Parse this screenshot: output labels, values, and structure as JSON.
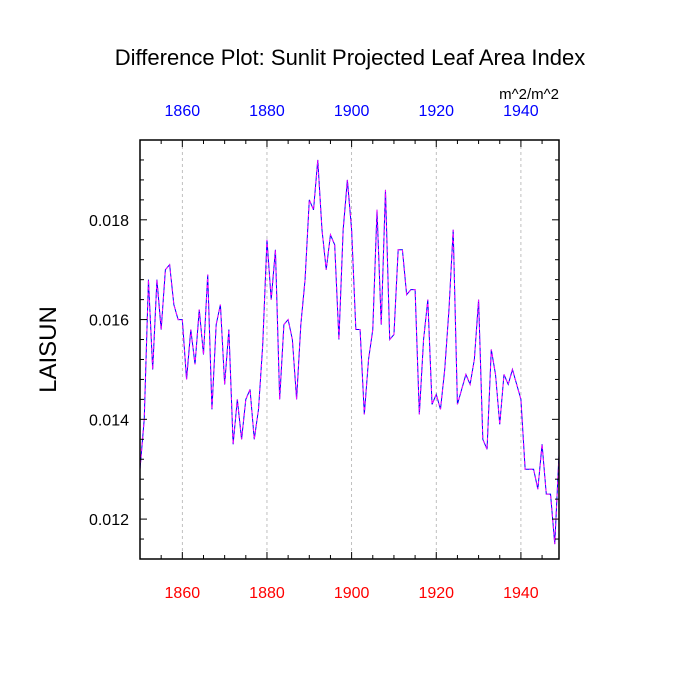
{
  "chart_data": {
    "type": "line",
    "title": "Difference Plot: Sunlit Projected Leaf Area Index",
    "units": "m^2/m^2",
    "ylabel": "LAISUN",
    "xlabel": "",
    "xlim": [
      1850,
      1949
    ],
    "ylim": [
      0.0112,
      0.0196
    ],
    "xticks": [
      1860,
      1880,
      1900,
      1920,
      1940
    ],
    "xtick_labels_bottom": [
      "1860",
      "1880",
      "1900",
      "1920",
      "1940"
    ],
    "xtick_labels_top": [
      "1860",
      "1880",
      "1900",
      "1920",
      "1940"
    ],
    "yticks": [
      0.012,
      0.014,
      0.016,
      0.018
    ],
    "ytick_labels": [
      "0.012",
      "0.014",
      "0.016",
      "0.018"
    ],
    "grid": "vertical dashed at major x ticks",
    "colors": {
      "bottom_tick_labels": "#ff0000",
      "top_tick_labels": "#0000ff",
      "line_primary": "#0000ff",
      "line_overlay": "#ff00ff",
      "grid": "#b0b0b0",
      "frame": "#000000"
    },
    "series": [
      {
        "name": "LAISUN difference",
        "x": [
          1850,
          1851,
          1852,
          1853,
          1854,
          1855,
          1856,
          1857,
          1858,
          1859,
          1860,
          1861,
          1862,
          1863,
          1864,
          1865,
          1866,
          1867,
          1868,
          1869,
          1870,
          1871,
          1872,
          1873,
          1874,
          1875,
          1876,
          1877,
          1878,
          1879,
          1880,
          1881,
          1882,
          1883,
          1884,
          1885,
          1886,
          1887,
          1888,
          1889,
          1890,
          1891,
          1892,
          1893,
          1894,
          1895,
          1896,
          1897,
          1898,
          1899,
          1900,
          1901,
          1902,
          1903,
          1904,
          1905,
          1906,
          1907,
          1908,
          1909,
          1910,
          1911,
          1912,
          1913,
          1914,
          1915,
          1916,
          1917,
          1918,
          1919,
          1920,
          1921,
          1922,
          1923,
          1924,
          1925,
          1926,
          1927,
          1928,
          1929,
          1930,
          1931,
          1932,
          1933,
          1934,
          1935,
          1936,
          1937,
          1938,
          1939,
          1940,
          1941,
          1942,
          1943,
          1944,
          1945,
          1946,
          1947,
          1948,
          1949
        ],
        "values": [
          0.013,
          0.014,
          0.0168,
          0.015,
          0.0168,
          0.0158,
          0.017,
          0.0171,
          0.0163,
          0.016,
          0.016,
          0.0148,
          0.0158,
          0.0151,
          0.0162,
          0.0153,
          0.0169,
          0.0142,
          0.0159,
          0.0163,
          0.0147,
          0.0158,
          0.0135,
          0.0144,
          0.0136,
          0.0144,
          0.0146,
          0.0136,
          0.0142,
          0.0155,
          0.0176,
          0.0164,
          0.0174,
          0.0144,
          0.0159,
          0.016,
          0.0156,
          0.0144,
          0.0159,
          0.0168,
          0.0184,
          0.0182,
          0.0192,
          0.0178,
          0.017,
          0.0177,
          0.0175,
          0.0156,
          0.0178,
          0.0188,
          0.0178,
          0.0158,
          0.0158,
          0.0141,
          0.0152,
          0.0158,
          0.0182,
          0.0159,
          0.0186,
          0.0156,
          0.0157,
          0.0174,
          0.0174,
          0.0165,
          0.0166,
          0.0166,
          0.0141,
          0.0156,
          0.0164,
          0.0143,
          0.0145,
          0.0142,
          0.015,
          0.0162,
          0.0178,
          0.0143,
          0.0146,
          0.0149,
          0.0147,
          0.0152,
          0.0164,
          0.0136,
          0.0134,
          0.0154,
          0.0149,
          0.0139,
          0.0149,
          0.0147,
          0.015,
          0.0147,
          0.0144,
          0.013,
          0.013,
          0.013,
          0.0126,
          0.0135,
          0.0125,
          0.0125,
          0.0115,
          0.0133
        ]
      }
    ]
  }
}
